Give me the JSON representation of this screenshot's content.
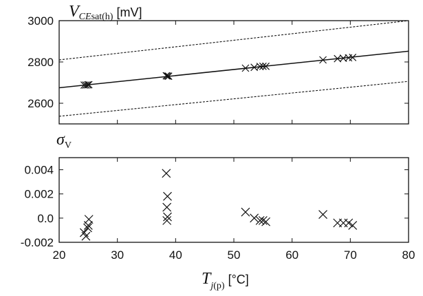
{
  "chart_data": [
    {
      "type": "scatter",
      "title": "",
      "ylabel": {
        "symbol": "V",
        "subscript_italic": "CE",
        "subscript": "sat(h)",
        "unit": "[mV]"
      },
      "xlim": [
        20,
        80
      ],
      "ylim": [
        2500,
        3000
      ],
      "yticks": [
        "3000",
        "2800",
        "2600"
      ],
      "grid": false,
      "series": [
        {
          "x": [
            24.3,
            24.6,
            24.9,
            25.1,
            38.4,
            38.6,
            38.8,
            52.0,
            53.5,
            54.5,
            55.0,
            55.5,
            65.3,
            67.8,
            68.8,
            69.7,
            70.4
          ],
          "y": [
            2688,
            2688,
            2689,
            2690,
            2733,
            2732,
            2731,
            2770,
            2774,
            2778,
            2779,
            2779,
            2810,
            2816,
            2818,
            2820,
            2822
          ]
        },
        {
          "type": "line",
          "x": [
            20,
            80
          ],
          "y": [
            2675,
            2852
          ]
        },
        {
          "type": "line",
          "style": "dashed",
          "x": [
            20,
            80
          ],
          "y": [
            2810,
            3000
          ]
        },
        {
          "type": "line",
          "style": "dashed",
          "x": [
            20,
            80
          ],
          "y": [
            2537,
            2706
          ]
        }
      ]
    },
    {
      "type": "scatter",
      "title": "",
      "ylabel": {
        "symbol": "σ",
        "subscript": "V"
      },
      "xlabel": {
        "symbol": "T",
        "subscript_italic": "j",
        "subscript": "(p)",
        "unit": "[°C]"
      },
      "xlim": [
        20,
        80
      ],
      "ylim": [
        -0.002,
        0.005
      ],
      "xticks": [
        "20",
        "30",
        "40",
        "50",
        "60",
        "70",
        "80"
      ],
      "yticks": [
        "0.004",
        "0.002",
        "0.0",
        "-0.002"
      ],
      "grid": false,
      "series": [
        {
          "x": [
            24.3,
            24.6,
            24.9,
            25.0,
            25.1,
            38.4,
            38.6,
            38.5,
            38.6,
            38.5,
            52.0,
            53.5,
            54.5,
            55.0,
            55.5,
            65.3,
            67.8,
            68.8,
            69.7,
            70.4
          ],
          "y": [
            -0.0012,
            -0.0015,
            -0.0008,
            -0.0006,
            -0.0001,
            0.0037,
            0.0018,
            0.0009,
            0.0001,
            -0.0002,
            0.0005,
            0.0,
            -0.0002,
            -0.0002,
            -0.0003,
            0.0003,
            -0.0004,
            -0.0004,
            -0.0004,
            -0.0006
          ]
        }
      ]
    }
  ]
}
